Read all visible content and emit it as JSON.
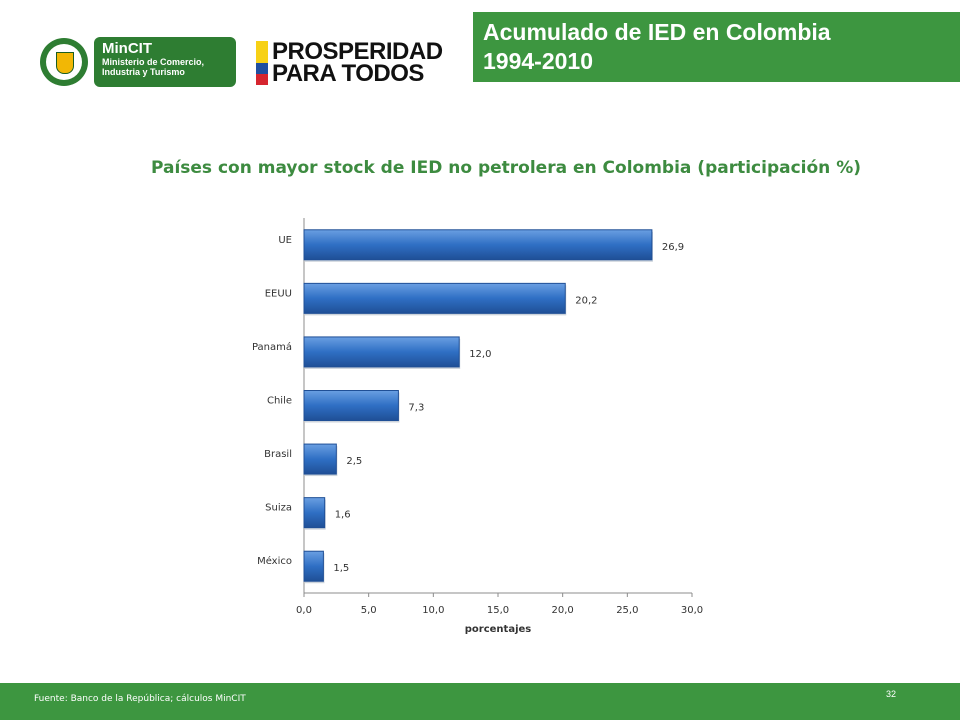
{
  "header": {
    "mincit_title": "MinCIT",
    "mincit_subtitle_line1": "Ministerio de Comercio,",
    "mincit_subtitle_line2": "Industria y Turismo",
    "prosperidad_line1": "PROSPERIDAD",
    "prosperidad_line2": "PARA TODOS",
    "title_line1": "Acumulado de IED en Colombia",
    "title_line2": "1994-2010"
  },
  "colors": {
    "green": "#3d9640",
    "bar": "#2f6fc4",
    "subtitle": "#3d8b40"
  },
  "chart_data": {
    "type": "bar",
    "orientation": "horizontal",
    "title": "Países con mayor stock de IED no petrolera en Colombia (participación %)",
    "xlabel": "porcentajes",
    "categories": [
      "UE",
      "EEUU",
      "Panamá",
      "Chile",
      "Brasil",
      "Suiza",
      "México"
    ],
    "values": [
      26.9,
      20.2,
      12.0,
      7.3,
      2.5,
      1.6,
      1.5
    ],
    "value_labels": [
      "26,9",
      "20,2",
      "12,0",
      "7,3",
      "2,5",
      "1,6",
      "1,5"
    ],
    "xlim": [
      0,
      30
    ],
    "x_ticks": [
      "0,0",
      "5,0",
      "10,0",
      "15,0",
      "20,0",
      "25,0",
      "30,0"
    ],
    "grid": false,
    "legend": "none"
  },
  "footer": {
    "source": "Fuente: Banco de la República; cálculos MinCIT",
    "page_number": "32"
  }
}
